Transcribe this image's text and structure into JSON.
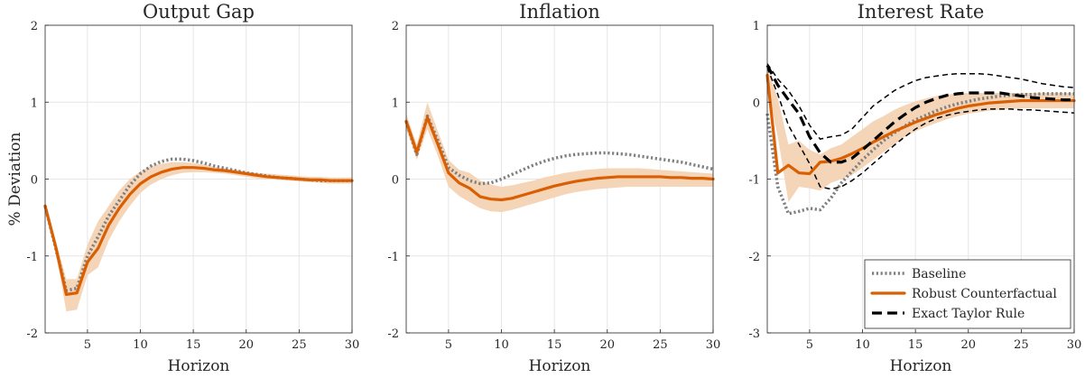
{
  "chart_data": [
    {
      "type": "line",
      "title": "Output Gap",
      "xlabel": "Horizon",
      "ylabel": "% Deviation",
      "xlim": [
        1,
        30
      ],
      "ylim": [
        -2,
        2
      ],
      "xticks": [
        5,
        10,
        15,
        20,
        25,
        30
      ],
      "yticks": [
        -2,
        -1,
        0,
        1,
        2
      ],
      "xtick_labels": [
        "5",
        "10",
        "15",
        "20",
        "25",
        "30"
      ],
      "ytick_labels": [
        "-2",
        "-1",
        "0",
        "1",
        "2"
      ],
      "grid": true,
      "x": [
        1,
        2,
        3,
        4,
        5,
        6,
        7,
        8,
        9,
        10,
        11,
        12,
        13,
        14,
        15,
        16,
        17,
        18,
        19,
        20,
        21,
        22,
        23,
        24,
        25,
        26,
        27,
        28,
        29,
        30
      ],
      "band": {
        "lower": [
          -0.38,
          -0.95,
          -1.72,
          -1.7,
          -1.25,
          -1.15,
          -0.8,
          -0.55,
          -0.35,
          -0.18,
          -0.07,
          0.0,
          0.05,
          0.08,
          0.09,
          0.09,
          0.08,
          0.07,
          0.05,
          0.03,
          0.01,
          0.0,
          -0.01,
          -0.02,
          -0.03,
          -0.04,
          -0.05,
          -0.06,
          -0.06,
          -0.06
        ],
        "upper": [
          -0.3,
          -0.8,
          -1.3,
          -1.3,
          -0.85,
          -0.55,
          -0.35,
          -0.15,
          0.0,
          0.1,
          0.17,
          0.2,
          0.22,
          0.22,
          0.21,
          0.19,
          0.16,
          0.14,
          0.12,
          0.1,
          0.08,
          0.07,
          0.06,
          0.05,
          0.04,
          0.03,
          0.03,
          0.02,
          0.02,
          0.02
        ]
      },
      "series": [
        {
          "name": "Baseline",
          "values": [
            -0.35,
            -0.9,
            -1.45,
            -1.42,
            -1.0,
            -0.75,
            -0.48,
            -0.28,
            -0.08,
            0.07,
            0.17,
            0.23,
            0.26,
            0.26,
            0.24,
            0.21,
            0.17,
            0.14,
            0.11,
            0.08,
            0.06,
            0.04,
            0.02,
            0.01,
            0.0,
            -0.01,
            -0.02,
            -0.02,
            -0.02,
            -0.02
          ]
        },
        {
          "name": "Robust Counterfactual",
          "values": [
            -0.35,
            -0.88,
            -1.5,
            -1.48,
            -1.08,
            -0.9,
            -0.6,
            -0.38,
            -0.2,
            -0.06,
            0.03,
            0.09,
            0.13,
            0.15,
            0.15,
            0.14,
            0.12,
            0.11,
            0.09,
            0.07,
            0.05,
            0.03,
            0.02,
            0.01,
            0.0,
            -0.01,
            -0.01,
            -0.02,
            -0.02,
            -0.02
          ]
        }
      ]
    },
    {
      "type": "line",
      "title": "Inflation",
      "xlabel": "Horizon",
      "xlim": [
        1,
        30
      ],
      "ylim": [
        -2,
        2
      ],
      "xticks": [
        5,
        10,
        15,
        20,
        25,
        30
      ],
      "yticks": [
        -2,
        -1,
        0,
        1,
        2
      ],
      "xtick_labels": [
        "5",
        "10",
        "15",
        "20",
        "25",
        "30"
      ],
      "ytick_labels": [
        "-2",
        "-1",
        "0",
        "1",
        "2"
      ],
      "grid": true,
      "x": [
        1,
        2,
        3,
        4,
        5,
        6,
        7,
        8,
        9,
        10,
        11,
        12,
        13,
        14,
        15,
        16,
        17,
        18,
        19,
        20,
        21,
        22,
        23,
        24,
        25,
        26,
        27,
        28,
        29,
        30
      ],
      "band": {
        "lower": [
          0.65,
          0.25,
          0.65,
          0.3,
          -0.1,
          -0.22,
          -0.3,
          -0.38,
          -0.42,
          -0.43,
          -0.4,
          -0.36,
          -0.32,
          -0.28,
          -0.24,
          -0.2,
          -0.17,
          -0.15,
          -0.13,
          -0.12,
          -0.11,
          -0.1,
          -0.1,
          -0.1,
          -0.1,
          -0.1,
          -0.1,
          -0.1,
          -0.1,
          -0.1
        ],
        "upper": [
          0.85,
          0.45,
          1.0,
          0.62,
          0.25,
          0.12,
          0.08,
          -0.02,
          -0.07,
          -0.1,
          -0.08,
          -0.05,
          -0.02,
          0.02,
          0.05,
          0.08,
          0.1,
          0.12,
          0.13,
          0.14,
          0.14,
          0.14,
          0.14,
          0.13,
          0.12,
          0.11,
          0.1,
          0.09,
          0.08,
          0.07
        ]
      },
      "series": [
        {
          "name": "Baseline",
          "values": [
            0.75,
            0.32,
            0.82,
            0.5,
            0.15,
            0.05,
            -0.02,
            -0.06,
            -0.05,
            0.0,
            0.06,
            0.12,
            0.18,
            0.23,
            0.27,
            0.3,
            0.32,
            0.33,
            0.34,
            0.34,
            0.33,
            0.32,
            0.3,
            0.28,
            0.26,
            0.24,
            0.22,
            0.19,
            0.16,
            0.13
          ]
        },
        {
          "name": "Robust Counterfactual",
          "values": [
            0.75,
            0.35,
            0.8,
            0.45,
            0.08,
            -0.05,
            -0.12,
            -0.23,
            -0.26,
            -0.27,
            -0.25,
            -0.21,
            -0.17,
            -0.13,
            -0.09,
            -0.06,
            -0.03,
            -0.01,
            0.01,
            0.02,
            0.03,
            0.03,
            0.03,
            0.03,
            0.03,
            0.02,
            0.02,
            0.01,
            0.01,
            0.0
          ]
        }
      ]
    },
    {
      "type": "line",
      "title": "Interest Rate",
      "xlabel": "Horizon",
      "xlim": [
        1,
        30
      ],
      "ylim": [
        -3,
        1
      ],
      "xticks": [
        5,
        10,
        15,
        20,
        25,
        30
      ],
      "yticks": [
        -3,
        -2,
        -1,
        0,
        1
      ],
      "xtick_labels": [
        "5",
        "10",
        "15",
        "20",
        "25",
        "30"
      ],
      "ytick_labels": [
        "-3",
        "-2",
        "-1",
        "0",
        "1"
      ],
      "grid": true,
      "legend_position": "bottom-right",
      "x": [
        1,
        2,
        3,
        4,
        5,
        6,
        7,
        8,
        9,
        10,
        11,
        12,
        13,
        14,
        15,
        16,
        17,
        18,
        19,
        20,
        21,
        22,
        23,
        24,
        25,
        26,
        27,
        28,
        29,
        30
      ],
      "band": {
        "lower": [
          0.2,
          -0.45,
          -1.3,
          -1.1,
          -1.12,
          -1.15,
          -1.05,
          -1.0,
          -0.95,
          -0.85,
          -0.75,
          -0.65,
          -0.55,
          -0.45,
          -0.38,
          -0.32,
          -0.27,
          -0.22,
          -0.18,
          -0.15,
          -0.13,
          -0.11,
          -0.1,
          -0.09,
          -0.08,
          -0.08,
          -0.08,
          -0.08,
          -0.08,
          -0.08
        ],
        "upper": [
          0.45,
          0.05,
          -0.55,
          -0.5,
          -0.62,
          -0.68,
          -0.6,
          -0.55,
          -0.45,
          -0.35,
          -0.25,
          -0.18,
          -0.1,
          -0.04,
          0.01,
          0.05,
          0.08,
          0.1,
          0.11,
          0.12,
          0.12,
          0.12,
          0.12,
          0.12,
          0.12,
          0.12,
          0.12,
          0.12,
          0.12,
          0.12
        ]
      },
      "series": [
        {
          "name": "Baseline",
          "values": [
            -0.15,
            -1.1,
            -1.45,
            -1.42,
            -1.38,
            -1.4,
            -1.25,
            -1.05,
            -0.9,
            -0.75,
            -0.62,
            -0.5,
            -0.4,
            -0.31,
            -0.23,
            -0.17,
            -0.11,
            -0.06,
            -0.02,
            0.01,
            0.04,
            0.06,
            0.08,
            0.09,
            0.1,
            0.1,
            0.11,
            0.11,
            0.11,
            0.11
          ]
        },
        {
          "name": "Robust Counterfactual",
          "values": [
            0.35,
            -0.92,
            -0.82,
            -0.92,
            -0.93,
            -0.78,
            -0.77,
            -0.73,
            -0.67,
            -0.6,
            -0.52,
            -0.45,
            -0.38,
            -0.32,
            -0.26,
            -0.21,
            -0.16,
            -0.12,
            -0.08,
            -0.05,
            -0.03,
            -0.01,
            0.0,
            0.01,
            0.02,
            0.02,
            0.02,
            0.02,
            0.02,
            0.02
          ]
        },
        {
          "name": "Exact Taylor Rule",
          "values": [
            0.48,
            0.22,
            0.03,
            -0.15,
            -0.45,
            -0.66,
            -0.78,
            -0.78,
            -0.73,
            -0.62,
            -0.5,
            -0.38,
            -0.26,
            -0.16,
            -0.07,
            0.0,
            0.05,
            0.09,
            0.11,
            0.12,
            0.12,
            0.12,
            0.12,
            0.1,
            0.08,
            0.06,
            0.05,
            0.04,
            0.03,
            0.03
          ]
        }
      ],
      "bounds": {
        "upper": [
          0.5,
          0.3,
          0.15,
          -0.05,
          -0.3,
          -0.48,
          -0.45,
          -0.43,
          -0.35,
          -0.2,
          -0.05,
          0.05,
          0.15,
          0.22,
          0.28,
          0.32,
          0.34,
          0.36,
          0.37,
          0.37,
          0.37,
          0.36,
          0.34,
          0.32,
          0.3,
          0.27,
          0.24,
          0.22,
          0.2,
          0.19
        ],
        "lower": [
          0.45,
          0.1,
          -0.3,
          -0.55,
          -0.8,
          -1.1,
          -1.13,
          -1.1,
          -1.02,
          -0.92,
          -0.8,
          -0.68,
          -0.56,
          -0.45,
          -0.35,
          -0.27,
          -0.21,
          -0.17,
          -0.14,
          -0.12,
          -0.1,
          -0.09,
          -0.09,
          -0.09,
          -0.1,
          -0.1,
          -0.11,
          -0.12,
          -0.13,
          -0.14
        ]
      }
    }
  ],
  "legend": {
    "items": [
      {
        "label": "Baseline",
        "color": "#808080",
        "style": "dotted"
      },
      {
        "label": "Robust Counterfactual",
        "color": "#D95F02",
        "style": "solid"
      },
      {
        "label": "Exact Taylor Rule",
        "color": "#000000",
        "style": "dashed"
      }
    ]
  },
  "colors": {
    "band": "#F5D5B8",
    "robust": "#D95F02",
    "baseline": "#808080",
    "taylor": "#000000",
    "grid": "#E6E6E6",
    "axis": "#262626"
  }
}
